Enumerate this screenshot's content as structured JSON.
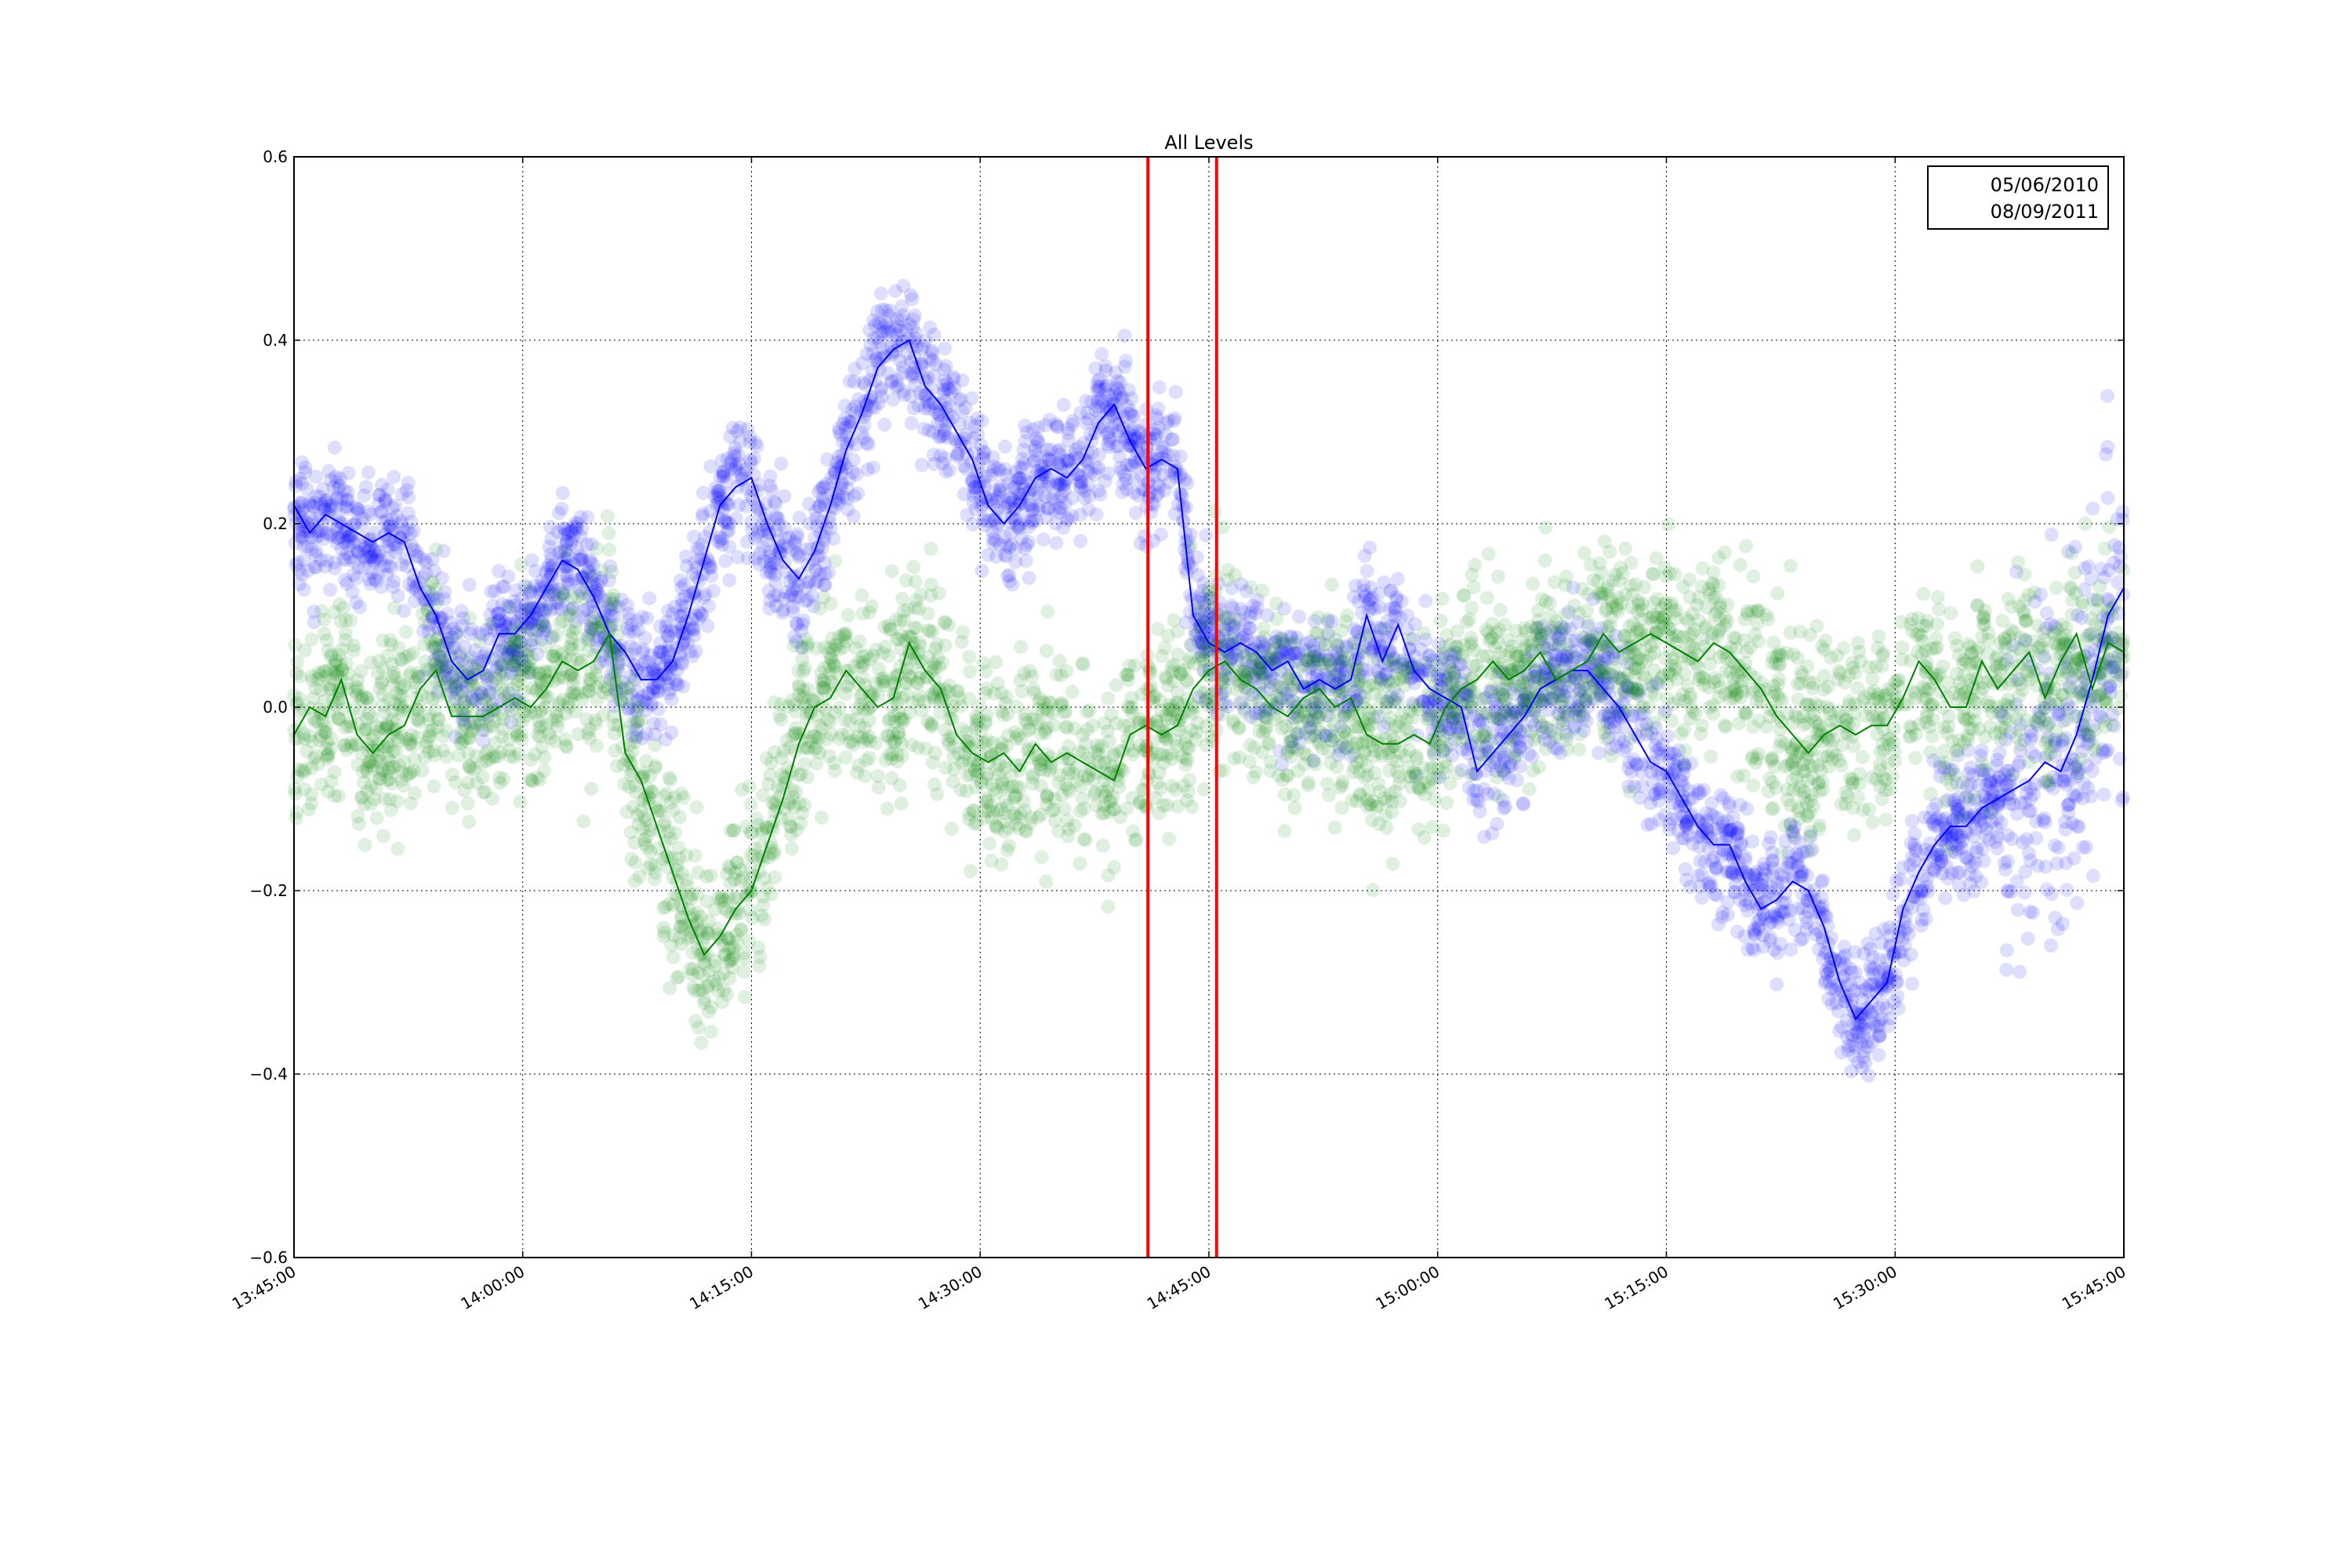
{
  "chart_data": {
    "type": "scatter",
    "title": "All Levels",
    "xlabel": "",
    "ylabel": "",
    "x_ticks": [
      "13:45:00",
      "14:00:00",
      "14:15:00",
      "14:30:00",
      "14:45:00",
      "15:00:00",
      "15:15:00",
      "15:30:00",
      "15:45:00"
    ],
    "x_range_minutes": [
      0,
      120
    ],
    "ylim": [
      -0.6,
      0.6
    ],
    "y_ticks": [
      -0.6,
      -0.4,
      -0.2,
      0.0,
      0.2,
      0.4,
      0.6
    ],
    "y_tick_labels": [
      "−0.6",
      "−0.4",
      "−0.2",
      "0.0",
      "0.2",
      "0.4",
      "0.6"
    ],
    "grid": true,
    "legend_position": "top-right",
    "vertical_lines": [
      {
        "time": "14:41:00",
        "color": "#ff0000"
      },
      {
        "time": "14:45:30",
        "color": "#ff0000"
      }
    ],
    "series": [
      {
        "name": "05/06/2010",
        "color": "#0000ff",
        "line_points": [
          [
            0,
            0.22
          ],
          [
            2,
            0.19
          ],
          [
            4,
            0.21
          ],
          [
            6,
            0.2
          ],
          [
            8,
            0.19
          ],
          [
            10,
            0.18
          ],
          [
            12,
            0.19
          ],
          [
            14,
            0.18
          ],
          [
            16,
            0.13
          ],
          [
            18,
            0.1
          ],
          [
            20,
            0.05
          ],
          [
            22,
            0.03
          ],
          [
            24,
            0.04
          ],
          [
            26,
            0.08
          ],
          [
            28,
            0.08
          ],
          [
            30,
            0.1
          ],
          [
            32,
            0.13
          ],
          [
            34,
            0.16
          ],
          [
            36,
            0.15
          ],
          [
            38,
            0.12
          ],
          [
            40,
            0.08
          ],
          [
            42,
            0.06
          ],
          [
            44,
            0.03
          ],
          [
            46,
            0.03
          ],
          [
            48,
            0.05
          ],
          [
            50,
            0.1
          ],
          [
            52,
            0.16
          ],
          [
            54,
            0.22
          ],
          [
            56,
            0.24
          ],
          [
            58,
            0.25
          ],
          [
            60,
            0.2
          ],
          [
            62,
            0.16
          ],
          [
            64,
            0.14
          ],
          [
            66,
            0.17
          ],
          [
            68,
            0.22
          ],
          [
            70,
            0.28
          ],
          [
            72,
            0.32
          ],
          [
            74,
            0.37
          ],
          [
            76,
            0.39
          ],
          [
            78,
            0.4
          ],
          [
            80,
            0.35
          ],
          [
            82,
            0.33
          ],
          [
            84,
            0.3
          ],
          [
            86,
            0.27
          ],
          [
            88,
            0.22
          ],
          [
            90,
            0.2
          ],
          [
            92,
            0.22
          ],
          [
            94,
            0.25
          ],
          [
            96,
            0.26
          ],
          [
            98,
            0.25
          ],
          [
            100,
            0.27
          ],
          [
            102,
            0.31
          ],
          [
            104,
            0.33
          ],
          [
            106,
            0.29
          ],
          [
            108,
            0.26
          ],
          [
            110,
            0.27
          ],
          [
            112,
            0.26
          ],
          [
            114,
            0.1
          ],
          [
            116,
            0.07
          ],
          [
            118,
            0.06
          ],
          [
            120,
            0.07
          ],
          [
            122,
            0.06
          ],
          [
            124,
            0.04
          ],
          [
            126,
            0.05
          ],
          [
            128,
            0.02
          ],
          [
            130,
            0.03
          ],
          [
            132,
            0.02
          ],
          [
            134,
            0.03
          ],
          [
            136,
            0.1
          ],
          [
            138,
            0.05
          ],
          [
            140,
            0.09
          ],
          [
            142,
            0.04
          ],
          [
            144,
            0.02
          ],
          [
            146,
            0.01
          ],
          [
            148,
            0.0
          ],
          [
            150,
            -0.07
          ],
          [
            152,
            -0.05
          ],
          [
            154,
            -0.03
          ],
          [
            156,
            -0.01
          ],
          [
            158,
            0.02
          ],
          [
            160,
            0.03
          ],
          [
            162,
            0.04
          ],
          [
            164,
            0.04
          ],
          [
            166,
            0.02
          ],
          [
            168,
            0.0
          ],
          [
            170,
            -0.03
          ],
          [
            172,
            -0.06
          ],
          [
            174,
            -0.07
          ],
          [
            176,
            -0.1
          ],
          [
            178,
            -0.13
          ],
          [
            180,
            -0.15
          ],
          [
            182,
            -0.15
          ],
          [
            184,
            -0.19
          ],
          [
            186,
            -0.22
          ],
          [
            188,
            -0.21
          ],
          [
            190,
            -0.19
          ],
          [
            192,
            -0.2
          ],
          [
            194,
            -0.24
          ],
          [
            196,
            -0.3
          ],
          [
            198,
            -0.34
          ],
          [
            200,
            -0.32
          ],
          [
            202,
            -0.3
          ],
          [
            204,
            -0.22
          ],
          [
            206,
            -0.18
          ],
          [
            208,
            -0.15
          ],
          [
            210,
            -0.13
          ],
          [
            212,
            -0.13
          ],
          [
            214,
            -0.11
          ],
          [
            216,
            -0.1
          ],
          [
            218,
            -0.09
          ],
          [
            220,
            -0.08
          ],
          [
            222,
            -0.06
          ],
          [
            224,
            -0.07
          ],
          [
            226,
            -0.03
          ],
          [
            228,
            0.03
          ],
          [
            230,
            0.1
          ],
          [
            232,
            0.13
          ]
        ]
      },
      {
        "name": "08/09/2011",
        "color": "#008000",
        "line_points": [
          [
            0,
            -0.03
          ],
          [
            2,
            0.0
          ],
          [
            4,
            -0.01
          ],
          [
            6,
            0.03
          ],
          [
            8,
            -0.03
          ],
          [
            10,
            -0.05
          ],
          [
            12,
            -0.03
          ],
          [
            14,
            -0.02
          ],
          [
            16,
            0.02
          ],
          [
            18,
            0.04
          ],
          [
            20,
            -0.01
          ],
          [
            22,
            -0.01
          ],
          [
            24,
            -0.01
          ],
          [
            26,
            0.0
          ],
          [
            28,
            0.01
          ],
          [
            30,
            0.0
          ],
          [
            32,
            0.02
          ],
          [
            34,
            0.05
          ],
          [
            36,
            0.04
          ],
          [
            38,
            0.05
          ],
          [
            40,
            0.08
          ],
          [
            42,
            -0.05
          ],
          [
            44,
            -0.08
          ],
          [
            46,
            -0.13
          ],
          [
            48,
            -0.18
          ],
          [
            50,
            -0.23
          ],
          [
            52,
            -0.27
          ],
          [
            54,
            -0.25
          ],
          [
            56,
            -0.22
          ],
          [
            58,
            -0.2
          ],
          [
            60,
            -0.15
          ],
          [
            62,
            -0.1
          ],
          [
            64,
            -0.04
          ],
          [
            66,
            0.0
          ],
          [
            68,
            0.01
          ],
          [
            70,
            0.04
          ],
          [
            72,
            0.02
          ],
          [
            74,
            0.0
          ],
          [
            76,
            0.01
          ],
          [
            78,
            0.07
          ],
          [
            80,
            0.04
          ],
          [
            82,
            0.02
          ],
          [
            84,
            -0.03
          ],
          [
            86,
            -0.05
          ],
          [
            88,
            -0.06
          ],
          [
            90,
            -0.05
          ],
          [
            92,
            -0.07
          ],
          [
            94,
            -0.04
          ],
          [
            96,
            -0.06
          ],
          [
            98,
            -0.05
          ],
          [
            100,
            -0.06
          ],
          [
            102,
            -0.07
          ],
          [
            104,
            -0.08
          ],
          [
            106,
            -0.03
          ],
          [
            108,
            -0.02
          ],
          [
            110,
            -0.03
          ],
          [
            112,
            -0.02
          ],
          [
            114,
            0.02
          ],
          [
            116,
            0.04
          ],
          [
            118,
            0.05
          ],
          [
            120,
            0.03
          ],
          [
            122,
            0.02
          ],
          [
            124,
            0.0
          ],
          [
            126,
            -0.01
          ],
          [
            128,
            0.01
          ],
          [
            130,
            0.02
          ],
          [
            132,
            0.0
          ],
          [
            134,
            0.01
          ],
          [
            136,
            -0.03
          ],
          [
            138,
            -0.04
          ],
          [
            140,
            -0.04
          ],
          [
            142,
            -0.03
          ],
          [
            144,
            -0.04
          ],
          [
            146,
            0.0
          ],
          [
            148,
            0.02
          ],
          [
            150,
            0.03
          ],
          [
            152,
            0.05
          ],
          [
            154,
            0.03
          ],
          [
            156,
            0.04
          ],
          [
            158,
            0.06
          ],
          [
            160,
            0.03
          ],
          [
            162,
            0.04
          ],
          [
            164,
            0.05
          ],
          [
            166,
            0.08
          ],
          [
            168,
            0.06
          ],
          [
            170,
            0.07
          ],
          [
            172,
            0.08
          ],
          [
            174,
            0.07
          ],
          [
            176,
            0.06
          ],
          [
            178,
            0.05
          ],
          [
            180,
            0.07
          ],
          [
            182,
            0.06
          ],
          [
            184,
            0.04
          ],
          [
            186,
            0.02
          ],
          [
            188,
            -0.01
          ],
          [
            190,
            -0.03
          ],
          [
            192,
            -0.05
          ],
          [
            194,
            -0.03
          ],
          [
            196,
            -0.02
          ],
          [
            198,
            -0.03
          ],
          [
            200,
            -0.02
          ],
          [
            202,
            -0.02
          ],
          [
            204,
            0.01
          ],
          [
            206,
            0.05
          ],
          [
            208,
            0.03
          ],
          [
            210,
            0.0
          ],
          [
            212,
            0.0
          ],
          [
            214,
            0.05
          ],
          [
            216,
            0.02
          ],
          [
            218,
            0.04
          ],
          [
            220,
            0.06
          ],
          [
            222,
            0.01
          ],
          [
            224,
            0.05
          ],
          [
            226,
            0.08
          ],
          [
            228,
            0.02
          ],
          [
            230,
            0.07
          ],
          [
            232,
            0.06
          ]
        ]
      }
    ]
  }
}
